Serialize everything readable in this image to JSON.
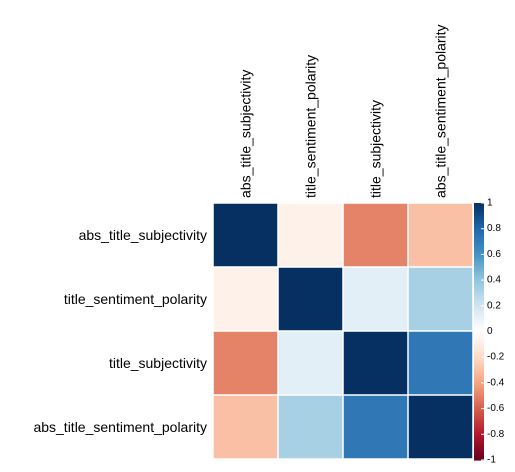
{
  "chart_data": {
    "type": "heatmap",
    "title": "",
    "variables": [
      "abs_title_subjectivity",
      "title_sentiment_polarity",
      "title_subjectivity",
      "abs_title_sentiment_polarity"
    ],
    "matrix": [
      [
        1.0,
        -0.08,
        -0.5,
        -0.3
      ],
      [
        -0.08,
        1.0,
        0.12,
        0.33
      ],
      [
        -0.5,
        0.12,
        1.0,
        0.72
      ],
      [
        -0.3,
        0.33,
        0.72,
        1.0
      ]
    ],
    "color_range": [
      -1,
      1
    ],
    "legend_ticks": [
      "1",
      "0.8",
      "0.6",
      "0.4",
      "0.2",
      "0",
      "-0.2",
      "-0.4",
      "-0.6",
      "-0.8",
      "-1"
    ],
    "colors": {
      "background": "#ffffff",
      "grid": "#ffffff",
      "text": "#000000",
      "scale": [
        [
          -1.0,
          "#67001F"
        ],
        [
          -0.8,
          "#B2182B"
        ],
        [
          -0.6,
          "#D6604D"
        ],
        [
          -0.4,
          "#F4A582"
        ],
        [
          -0.2,
          "#FDDBC7"
        ],
        [
          0.0,
          "#FFFFFF"
        ],
        [
          0.2,
          "#D1E5F0"
        ],
        [
          0.4,
          "#92C5DE"
        ],
        [
          0.6,
          "#4393C3"
        ],
        [
          0.8,
          "#2166AC"
        ],
        [
          1.0,
          "#053061"
        ]
      ]
    }
  }
}
